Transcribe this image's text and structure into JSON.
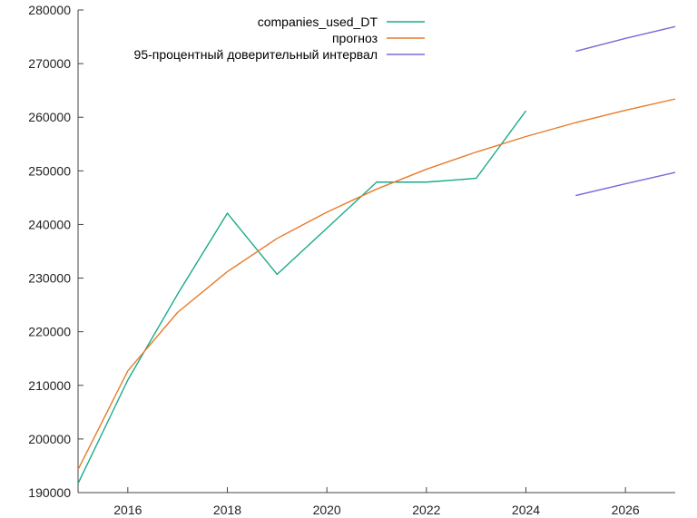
{
  "chart_data": {
    "type": "line",
    "title": "",
    "xlabel": "",
    "ylabel": "",
    "xlim": [
      2015,
      2027
    ],
    "ylim": [
      190000,
      280000
    ],
    "x_ticks": [
      2016,
      2018,
      2020,
      2022,
      2024,
      2026
    ],
    "y_ticks": [
      190000,
      200000,
      210000,
      220000,
      230000,
      240000,
      250000,
      260000,
      270000,
      280000
    ],
    "x_tick_labels": [
      "2016",
      "2018",
      "2020",
      "2022",
      "2024",
      "2026"
    ],
    "y_tick_labels": [
      "190000",
      "200000",
      "210000",
      "220000",
      "230000",
      "240000",
      "250000",
      "260000",
      "270000",
      "280000"
    ],
    "grid": false,
    "legend_position": "top-right",
    "series": [
      {
        "name": "companies_used_DT",
        "color": "#1aaa8a",
        "x": [
          2015,
          2016,
          2017,
          2018,
          2019,
          2020,
          2021,
          2022,
          2023,
          2024
        ],
        "y": [
          191700,
          211000,
          227000,
          242100,
          230700,
          239300,
          247900,
          247900,
          248600,
          261200
        ]
      },
      {
        "name": "прогноз",
        "color": "#e87a2a",
        "x": [
          2015,
          2016,
          2017,
          2018,
          2019,
          2020,
          2021,
          2022,
          2023,
          2024,
          2025,
          2026,
          2027
        ],
        "y": [
          194300,
          212700,
          223600,
          231200,
          237400,
          242300,
          246600,
          250300,
          253500,
          256400,
          259000,
          261300,
          263400
        ]
      },
      {
        "name": "95-процентный доверительный интервал",
        "color": "#7b68d8",
        "x": [
          2025,
          2026,
          2027
        ],
        "y": [
          272300,
          274700,
          276900
        ]
      },
      {
        "name": "",
        "color": "#7b68d8",
        "x": [
          2025,
          2026,
          2027
        ],
        "y": [
          245400,
          247600,
          249700
        ]
      }
    ]
  }
}
